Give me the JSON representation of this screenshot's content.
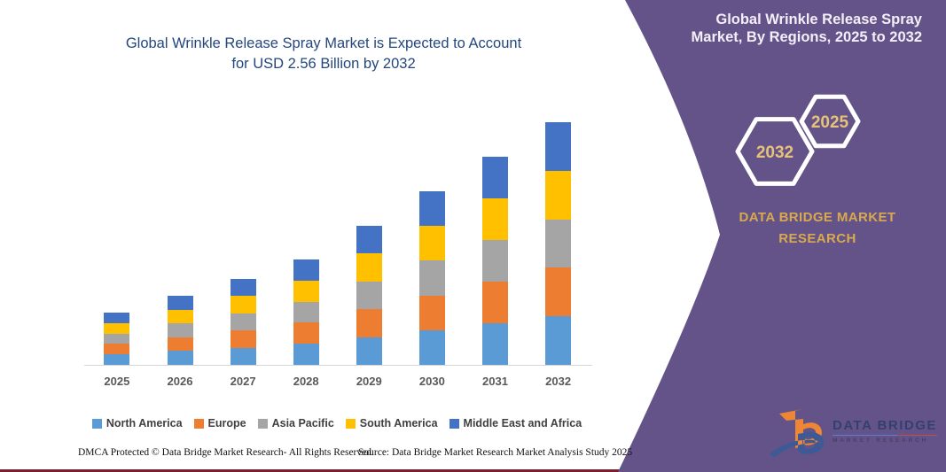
{
  "left_panel": {
    "title_line1": "Global Wrinkle Release Spray Market is Expected to Account",
    "title_line2": "for USD 2.56 Billion by 2032",
    "footer_left": "DMCA Protected © Data Bridge Market Research- All Rights Reserved.",
    "footer_source": "Source: Data Bridge Market Research Market Analysis Study 2025"
  },
  "right_panel": {
    "title_line1": "Global Wrinkle Release Spray",
    "title_line2": "Market, By Regions, 2025 to 2032",
    "hexagon_back_year": "2032",
    "hexagon_front_year": "2025",
    "brand_heading_line1": "DATA BRIDGE MARKET",
    "brand_heading_line2": "RESEARCH",
    "logo_name_top": "DATA BRIDGE",
    "logo_name_bottom": "MARKET RESEARCH",
    "background_color": "#645388",
    "gold_color": "#d8a94f"
  },
  "chart_data": {
    "type": "bar",
    "stacked": true,
    "title": "Global Wrinkle Release Spray Market is Expected to Account for USD 2.56 Billion by 2032",
    "value_unit": "USD Billion",
    "xlabel": "",
    "ylabel": "",
    "ylim": [
      0,
      2.56
    ],
    "gridlines": false,
    "legend_position": "bottom",
    "categories": [
      "2025",
      "2026",
      "2027",
      "2028",
      "2029",
      "2030",
      "2031",
      "2032"
    ],
    "series": [
      {
        "name": "North America",
        "color": "#5B9BD5",
        "values": [
          0.11,
          0.146,
          0.182,
          0.222,
          0.294,
          0.366,
          0.44,
          0.512
        ]
      },
      {
        "name": "Europe",
        "color": "#ED7D31",
        "values": [
          0.11,
          0.146,
          0.182,
          0.222,
          0.294,
          0.366,
          0.44,
          0.512
        ]
      },
      {
        "name": "Asia Pacific",
        "color": "#A5A5A5",
        "values": [
          0.11,
          0.146,
          0.182,
          0.222,
          0.294,
          0.366,
          0.44,
          0.512
        ]
      },
      {
        "name": "South America",
        "color": "#FFC000",
        "values": [
          0.11,
          0.146,
          0.182,
          0.222,
          0.294,
          0.366,
          0.44,
          0.512
        ]
      },
      {
        "name": "Middle East and Africa",
        "color": "#4472C4",
        "values": [
          0.11,
          0.146,
          0.182,
          0.222,
          0.294,
          0.366,
          0.44,
          0.512
        ]
      }
    ],
    "totals": [
      0.55,
      0.73,
      0.91,
      1.11,
      1.47,
      1.83,
      2.2,
      2.56
    ]
  }
}
